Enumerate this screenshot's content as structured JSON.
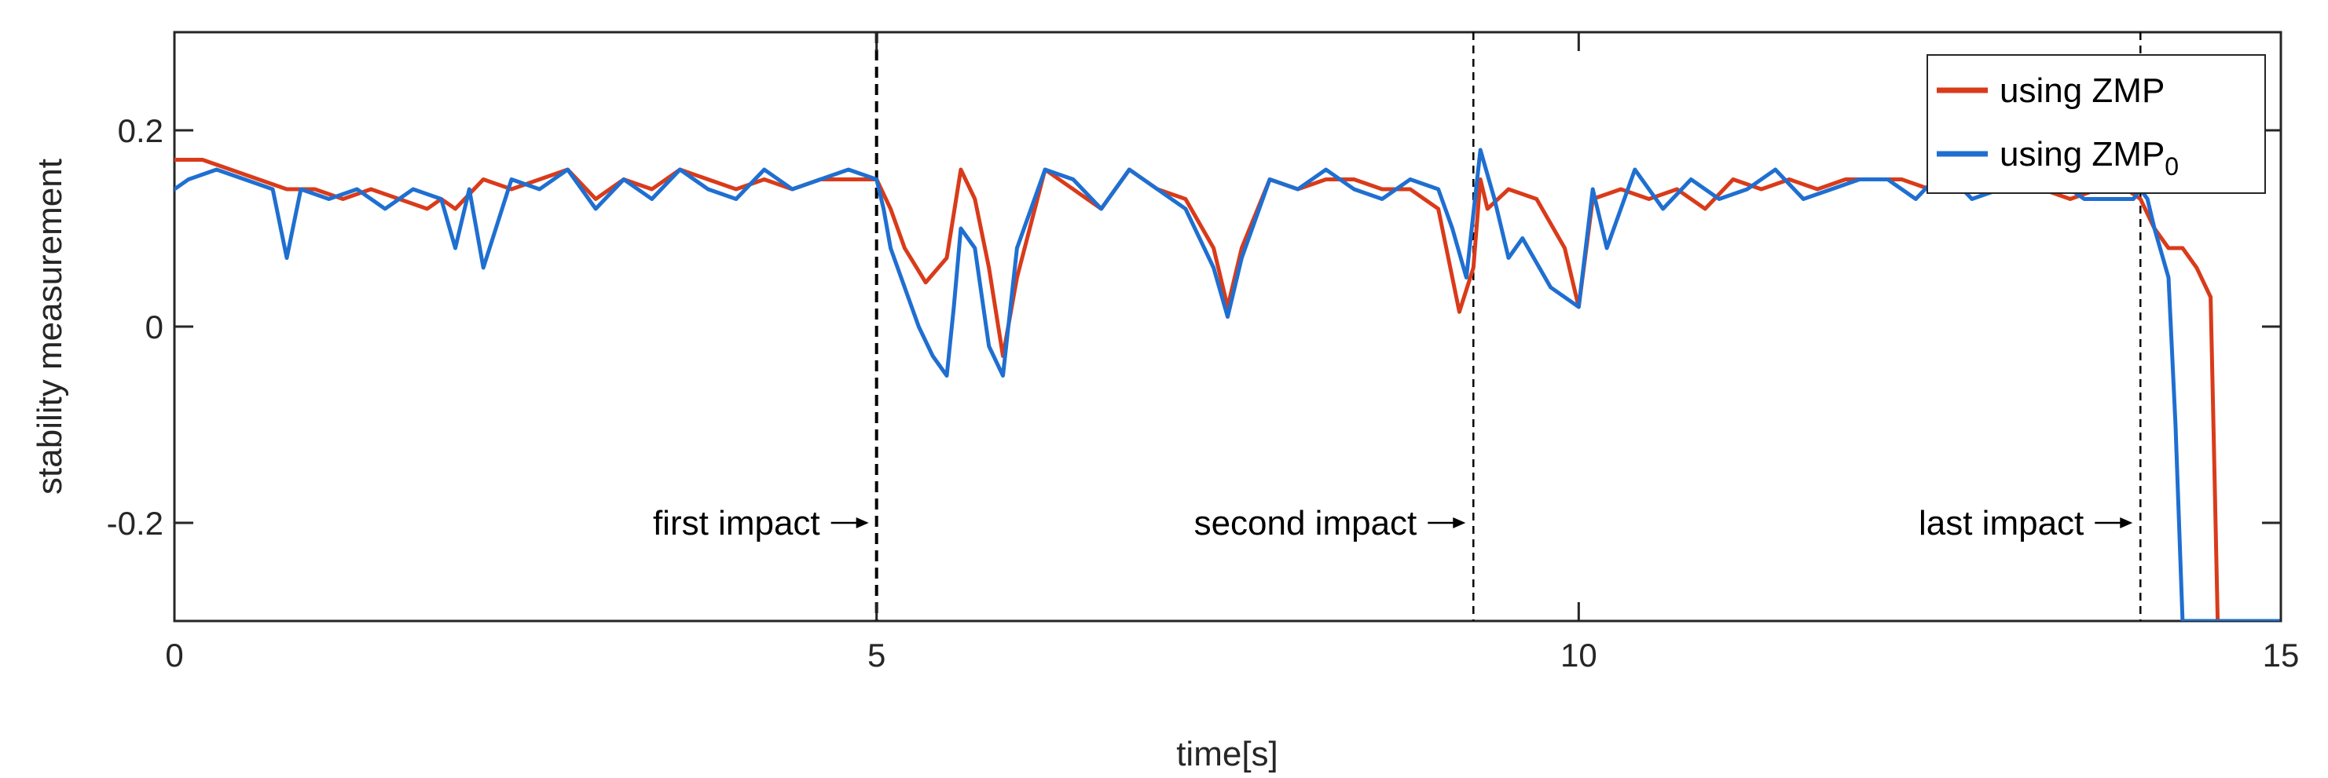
{
  "chart_data": {
    "type": "line",
    "xlabel": "time[s]",
    "ylabel": "stability measurement",
    "xlim": [
      0,
      15
    ],
    "ylim": [
      -0.3,
      0.3
    ],
    "xticks": [
      0,
      5,
      10,
      15
    ],
    "xtick_labels": [
      "0",
      "5",
      "10",
      "15"
    ],
    "yticks": [
      0.2,
      0,
      -0.2
    ],
    "ytick_labels": [
      "0.2",
      "0",
      "-0.2"
    ],
    "grid": false,
    "legend_position": "top-right",
    "series": [
      {
        "name": "using ZMP",
        "color": "#d93b1a",
        "x": [
          0,
          0.2,
          0.4,
          0.6,
          0.8,
          1.0,
          1.2,
          1.4,
          1.6,
          1.8,
          1.9,
          2.0,
          2.2,
          2.4,
          2.6,
          2.8,
          3.0,
          3.2,
          3.4,
          3.6,
          3.8,
          4.0,
          4.2,
          4.4,
          4.6,
          4.8,
          5.0,
          5.1,
          5.2,
          5.35,
          5.5,
          5.6,
          5.7,
          5.8,
          5.9,
          6.0,
          6.2,
          6.4,
          6.6,
          6.8,
          7.0,
          7.2,
          7.4,
          7.5,
          7.6,
          7.8,
          8.0,
          8.2,
          8.4,
          8.6,
          8.8,
          9.0,
          9.15,
          9.25,
          9.3,
          9.35,
          9.5,
          9.7,
          9.9,
          10.0,
          10.1,
          10.3,
          10.5,
          10.7,
          10.9,
          11.1,
          11.3,
          11.5,
          11.7,
          11.9,
          12.1,
          12.3,
          12.5,
          12.7,
          12.9,
          13.1,
          13.3,
          13.5,
          13.7,
          13.9,
          14.0,
          14.1,
          14.2,
          14.3,
          14.4,
          14.5,
          14.52,
          14.55
        ],
        "y": [
          0.17,
          0.17,
          0.16,
          0.15,
          0.14,
          0.14,
          0.13,
          0.14,
          0.13,
          0.12,
          0.13,
          0.12,
          0.15,
          0.14,
          0.15,
          0.16,
          0.13,
          0.15,
          0.14,
          0.16,
          0.15,
          0.14,
          0.15,
          0.14,
          0.15,
          0.15,
          0.15,
          0.12,
          0.08,
          0.045,
          0.07,
          0.16,
          0.13,
          0.06,
          -0.03,
          0.05,
          0.16,
          0.14,
          0.12,
          0.16,
          0.14,
          0.13,
          0.08,
          0.02,
          0.08,
          0.15,
          0.14,
          0.15,
          0.15,
          0.14,
          0.14,
          0.12,
          0.015,
          0.06,
          0.15,
          0.12,
          0.14,
          0.13,
          0.08,
          0.02,
          0.13,
          0.14,
          0.13,
          0.14,
          0.12,
          0.15,
          0.14,
          0.15,
          0.14,
          0.15,
          0.15,
          0.15,
          0.14,
          0.15,
          0.14,
          0.14,
          0.14,
          0.13,
          0.14,
          0.14,
          0.13,
          0.1,
          0.08,
          0.08,
          0.06,
          0.03,
          -0.1,
          -0.3
        ]
      },
      {
        "name": "using ZMP",
        "name_subscript": "0",
        "color": "#1f6fd1",
        "x": [
          0,
          0.1,
          0.3,
          0.5,
          0.7,
          0.8,
          0.9,
          1.1,
          1.3,
          1.5,
          1.7,
          1.9,
          2.0,
          2.1,
          2.2,
          2.4,
          2.6,
          2.8,
          3.0,
          3.2,
          3.4,
          3.6,
          3.8,
          4.0,
          4.2,
          4.4,
          4.6,
          4.8,
          5.0,
          5.05,
          5.1,
          5.2,
          5.3,
          5.4,
          5.5,
          5.55,
          5.6,
          5.7,
          5.8,
          5.9,
          6.0,
          6.2,
          6.4,
          6.6,
          6.8,
          7.0,
          7.2,
          7.4,
          7.5,
          7.6,
          7.8,
          8.0,
          8.2,
          8.4,
          8.6,
          8.8,
          9.0,
          9.1,
          9.2,
          9.3,
          9.4,
          9.5,
          9.6,
          9.8,
          10.0,
          10.1,
          10.2,
          10.4,
          10.6,
          10.8,
          11.0,
          11.2,
          11.4,
          11.6,
          11.8,
          12.0,
          12.2,
          12.4,
          12.6,
          12.8,
          13.0,
          13.2,
          13.4,
          13.6,
          13.8,
          13.95,
          14.0,
          14.05,
          14.1,
          14.2,
          14.25,
          14.3,
          15.0
        ],
        "y": [
          0.14,
          0.15,
          0.16,
          0.15,
          0.14,
          0.07,
          0.14,
          0.13,
          0.14,
          0.12,
          0.14,
          0.13,
          0.08,
          0.14,
          0.06,
          0.15,
          0.14,
          0.16,
          0.12,
          0.15,
          0.13,
          0.16,
          0.14,
          0.13,
          0.16,
          0.14,
          0.15,
          0.16,
          0.15,
          0.12,
          0.08,
          0.04,
          0.0,
          -0.03,
          -0.05,
          0.02,
          0.1,
          0.08,
          -0.02,
          -0.05,
          0.08,
          0.16,
          0.15,
          0.12,
          0.16,
          0.14,
          0.12,
          0.06,
          0.01,
          0.07,
          0.15,
          0.14,
          0.16,
          0.14,
          0.13,
          0.15,
          0.14,
          0.1,
          0.05,
          0.18,
          0.13,
          0.07,
          0.09,
          0.04,
          0.02,
          0.14,
          0.08,
          0.16,
          0.12,
          0.15,
          0.13,
          0.14,
          0.16,
          0.13,
          0.14,
          0.15,
          0.15,
          0.13,
          0.16,
          0.13,
          0.14,
          0.14,
          0.15,
          0.13,
          0.13,
          0.13,
          0.14,
          0.13,
          0.1,
          0.05,
          -0.1,
          -0.3,
          -0.3
        ]
      }
    ],
    "vlines": [
      {
        "x": 5.0,
        "style": "dashed-bold"
      },
      {
        "x": 9.25,
        "style": "dashed"
      },
      {
        "x": 14.0,
        "style": "dashed"
      }
    ],
    "annotations": [
      {
        "text": "first impact",
        "arrow_to_x": 5.0,
        "y": -0.2
      },
      {
        "text": "second impact",
        "arrow_to_x": 9.25,
        "y": -0.2
      },
      {
        "text": "last impact",
        "arrow_to_x": 14.0,
        "y": -0.2
      }
    ]
  }
}
